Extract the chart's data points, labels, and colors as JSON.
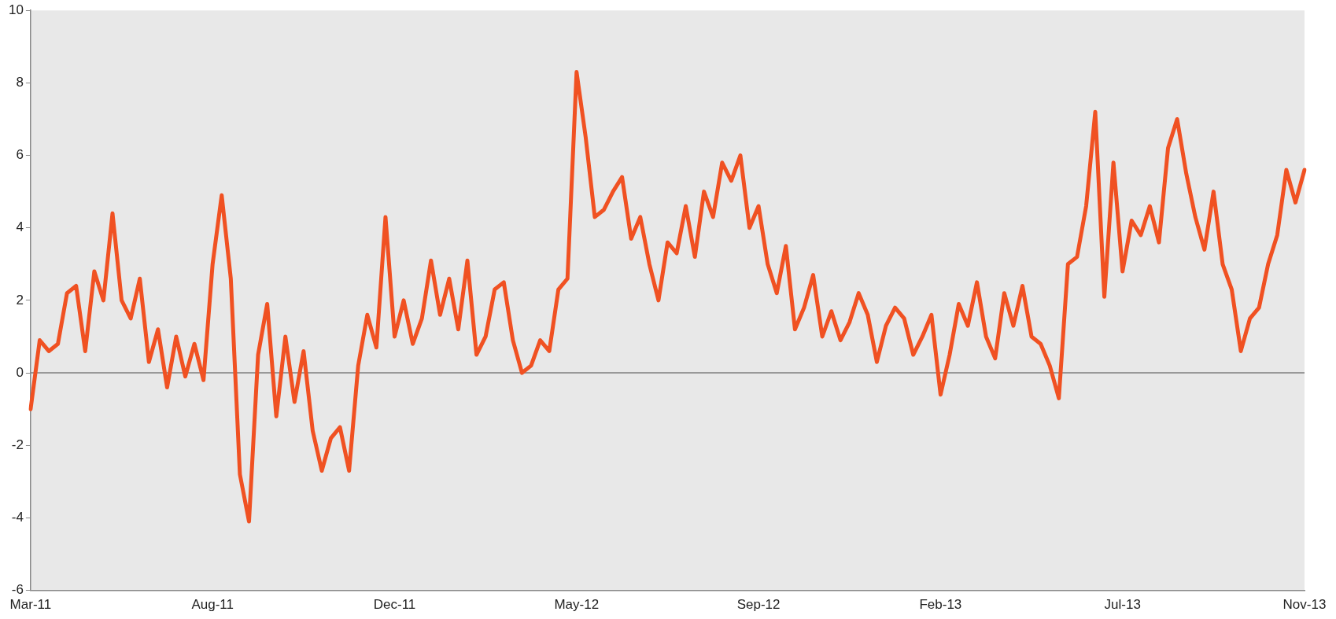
{
  "chart_data": {
    "type": "line",
    "categories": [
      "Mar-11",
      null,
      null,
      null,
      null,
      null,
      null,
      null,
      null,
      null,
      null,
      null,
      null,
      null,
      null,
      null,
      null,
      null,
      null,
      null,
      "Aug-11",
      null,
      null,
      null,
      null,
      null,
      null,
      null,
      null,
      null,
      null,
      null,
      null,
      null,
      null,
      null,
      null,
      null,
      null,
      null,
      "Dec-11",
      null,
      null,
      null,
      null,
      null,
      null,
      null,
      null,
      null,
      null,
      null,
      null,
      null,
      null,
      null,
      null,
      null,
      null,
      null,
      "May-12",
      null,
      null,
      null,
      null,
      null,
      null,
      null,
      null,
      null,
      null,
      null,
      null,
      null,
      null,
      null,
      null,
      null,
      null,
      null,
      "Sep-12",
      null,
      null,
      null,
      null,
      null,
      null,
      null,
      null,
      null,
      null,
      null,
      null,
      null,
      null,
      null,
      null,
      null,
      null,
      null,
      "Feb-13",
      null,
      null,
      null,
      null,
      null,
      null,
      null,
      null,
      null,
      null,
      null,
      null,
      null,
      null,
      null,
      null,
      null,
      null,
      null,
      "Jul-13",
      null,
      null,
      null,
      null,
      null,
      null,
      null,
      null,
      null,
      null,
      null,
      null,
      null,
      null,
      null,
      null,
      null,
      null,
      null,
      "Nov-13"
    ],
    "series": [
      {
        "color": "#f05122",
        "values": [
          -1.0,
          0.9,
          0.6,
          0.8,
          2.2,
          2.4,
          0.6,
          2.8,
          2.0,
          4.4,
          2.0,
          1.5,
          2.6,
          0.3,
          1.2,
          -0.4,
          1.0,
          -0.1,
          0.8,
          -0.2,
          3.0,
          4.9,
          2.6,
          -2.8,
          -4.1,
          0.5,
          1.9,
          -1.2,
          1.0,
          -0.8,
          0.6,
          -1.6,
          -2.7,
          -1.8,
          -1.5,
          -2.7,
          0.2,
          1.6,
          0.7,
          4.3,
          1.0,
          2.0,
          0.8,
          1.5,
          3.1,
          1.6,
          2.6,
          1.2,
          3.1,
          0.5,
          1.0,
          2.3,
          2.5,
          0.9,
          0.0,
          0.2,
          0.9,
          0.6,
          2.3,
          2.6,
          8.3,
          6.5,
          4.3,
          4.5,
          5.0,
          5.4,
          3.7,
          4.3,
          3.0,
          2.0,
          3.6,
          3.3,
          4.6,
          3.2,
          5.0,
          4.3,
          5.8,
          5.3,
          6.0,
          4.0,
          4.6,
          3.0,
          2.2,
          3.5,
          1.2,
          1.8,
          2.7,
          1.0,
          1.7,
          0.9,
          1.4,
          2.2,
          1.6,
          0.3,
          1.3,
          1.8,
          1.5,
          0.5,
          1.0,
          1.6,
          -0.6,
          0.5,
          1.9,
          1.3,
          2.5,
          1.0,
          0.4,
          2.2,
          1.3,
          2.4,
          1.0,
          0.8,
          0.2,
          -0.7,
          3.0,
          3.2,
          4.6,
          7.2,
          2.1,
          5.8,
          2.8,
          4.2,
          3.8,
          4.6,
          3.6,
          6.2,
          7.0,
          5.5,
          4.3,
          3.4,
          5.0,
          3.0,
          2.3,
          0.6,
          1.5,
          1.8,
          3.0,
          3.8,
          5.6,
          4.7,
          5.6
        ]
      }
    ],
    "ylim": [
      -6,
      10
    ],
    "yticks": [
      -6,
      -4,
      -2,
      0,
      2,
      4,
      6,
      8,
      10
    ],
    "ref_lines": [
      {
        "axis": "y",
        "value": 0,
        "color": "#7f7f7f"
      }
    ],
    "grid": false,
    "legend": false,
    "marker": "none",
    "line_style": "solid"
  }
}
